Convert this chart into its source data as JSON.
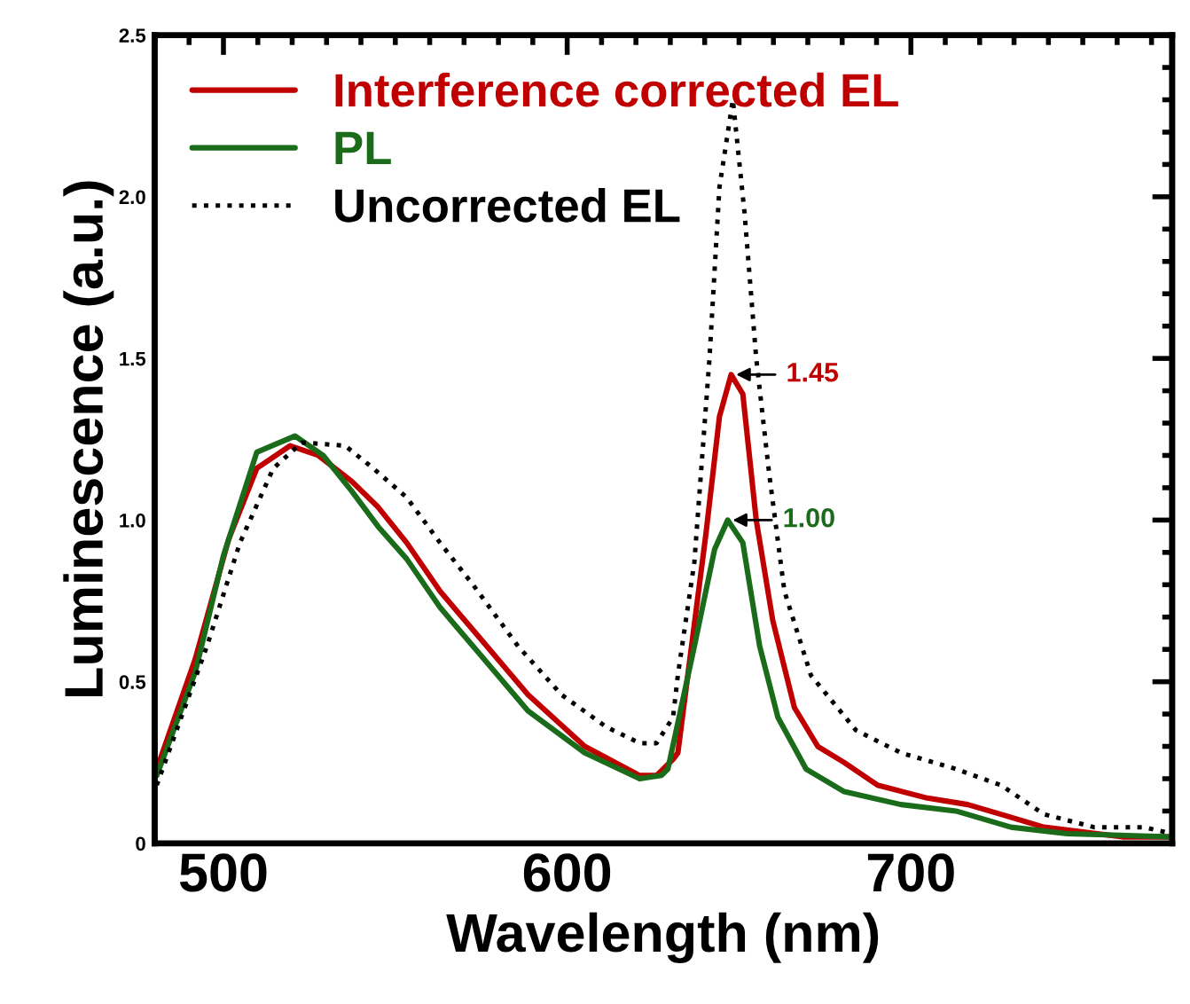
{
  "chart_data": {
    "type": "line",
    "xlabel": "Wavelength (nm)",
    "ylabel": "Luminescence (a.u.)",
    "xlim": [
      480,
      776
    ],
    "xticks": [
      500,
      600,
      700
    ],
    "ylim": [
      0,
      2.5
    ],
    "yticks": [
      0,
      {
        "value": 0.5,
        "label": "0.5"
      },
      {
        "value": 1.0,
        "label": "1.0"
      },
      {
        "value": 1.5,
        "label": "1.5"
      },
      {
        "value": 2.0,
        "label": "2.0"
      },
      2.5
    ],
    "legend": "top left",
    "grid": false,
    "series": [
      {
        "name": "Interference corrected EL",
        "color": "#c00000",
        "line_style": "solid",
        "x": [
          480.6,
          491.8,
          501.5,
          509.7,
          519.4,
          527.6,
          537.3,
          545.0,
          553.3,
          563.0,
          572.6,
          588.6,
          605.1,
          621.1,
          626.0,
          630.8,
          632.2,
          640.4,
          644.3,
          647.7,
          651.1,
          655.0,
          659.8,
          666.1,
          672.9,
          680.6,
          690.3,
          704.8,
          716.5,
          726.2,
          738.7,
          761.5,
          776.0
        ],
        "values": [
          0.23,
          0.57,
          0.94,
          1.16,
          1.23,
          1.2,
          1.12,
          1.04,
          0.93,
          0.78,
          0.66,
          0.46,
          0.3,
          0.21,
          0.21,
          0.26,
          0.28,
          0.96,
          1.32,
          1.45,
          1.39,
          1.0,
          0.69,
          0.42,
          0.3,
          0.25,
          0.18,
          0.14,
          0.12,
          0.09,
          0.05,
          0.02,
          0.02
        ]
      },
      {
        "name": "PL",
        "color": "#1a6b1a",
        "line_style": "solid",
        "x": [
          480.6,
          491.8,
          500.0,
          509.7,
          520.8,
          529.0,
          537.3,
          545.0,
          553.3,
          563.0,
          572.6,
          588.6,
          605.1,
          621.1,
          627.4,
          629.3,
          637.0,
          642.9,
          646.7,
          651.1,
          656.0,
          661.3,
          669.5,
          680.6,
          697.1,
          713.1,
          729.1,
          745.5,
          776.0
        ],
        "values": [
          0.21,
          0.53,
          0.89,
          1.21,
          1.26,
          1.2,
          1.09,
          0.98,
          0.88,
          0.73,
          0.61,
          0.41,
          0.28,
          0.2,
          0.21,
          0.23,
          0.61,
          0.91,
          1.0,
          0.93,
          0.61,
          0.39,
          0.23,
          0.16,
          0.12,
          0.1,
          0.05,
          0.03,
          0.02
        ]
      },
      {
        "name": "Uncorrected EL",
        "color": "#000000",
        "line_style": "dotted",
        "x": [
          480.6,
          495.2,
          504.8,
          514.5,
          522.8,
          535.4,
          543.6,
          553.3,
          563.0,
          572.6,
          585.7,
          598.3,
          611.4,
          621.1,
          626.0,
          630.8,
          632.2,
          637.0,
          641.4,
          644.3,
          648.2,
          651.6,
          655.0,
          658.8,
          663.2,
          670.9,
          684.0,
          697.1,
          713.1,
          726.2,
          738.7,
          753.3,
          767.8,
          776.0
        ],
        "values": [
          0.18,
          0.61,
          0.93,
          1.16,
          1.24,
          1.23,
          1.16,
          1.07,
          0.93,
          0.8,
          0.61,
          0.46,
          0.36,
          0.31,
          0.31,
          0.39,
          0.52,
          0.87,
          1.5,
          2.03,
          2.3,
          1.95,
          1.5,
          1.14,
          0.78,
          0.52,
          0.35,
          0.28,
          0.23,
          0.18,
          0.09,
          0.05,
          0.05,
          0.03
        ]
      }
    ],
    "annotations": [
      {
        "text": "1.45",
        "x": 647.7,
        "y": 1.45
      },
      {
        "text": "1.00",
        "x": 646.7,
        "y": 1.0
      }
    ]
  }
}
